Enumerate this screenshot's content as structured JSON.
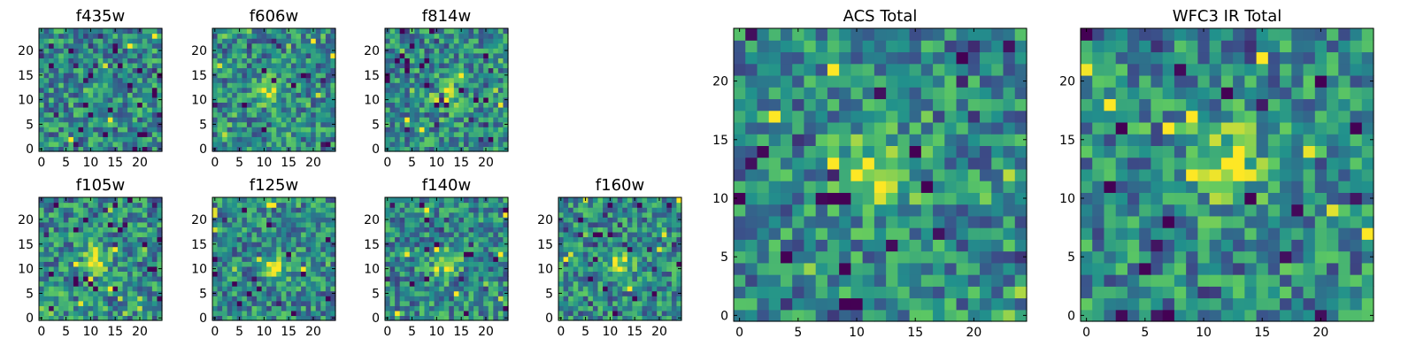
{
  "chart_data": [
    {
      "type": "heatmap",
      "title": "f435w",
      "n": 25,
      "xticks": [
        0,
        5,
        10,
        15,
        20
      ],
      "yticks": [
        0,
        5,
        10,
        15,
        20
      ],
      "xlim": [
        0,
        24
      ],
      "ylim": [
        0,
        24
      ],
      "peak": null
    },
    {
      "type": "heatmap",
      "title": "f606w",
      "n": 25,
      "xticks": [
        0,
        5,
        10,
        15,
        20
      ],
      "yticks": [
        0,
        5,
        10,
        15,
        20
      ],
      "xlim": [
        0,
        24
      ],
      "ylim": [
        0,
        24
      ],
      "peak": [
        11,
        12
      ]
    },
    {
      "type": "heatmap",
      "title": "f814w",
      "n": 25,
      "xticks": [
        0,
        5,
        10,
        15,
        20
      ],
      "yticks": [
        0,
        5,
        10,
        15,
        20
      ],
      "xlim": [
        0,
        24
      ],
      "ylim": [
        0,
        24
      ],
      "peak": [
        12,
        11
      ]
    },
    {
      "type": "heatmap",
      "title": "f105w",
      "n": 25,
      "xticks": [
        0,
        5,
        10,
        15,
        20
      ],
      "yticks": [
        0,
        5,
        10,
        15,
        20
      ],
      "xlim": [
        0,
        24
      ],
      "ylim": [
        0,
        24
      ],
      "peak": [
        11,
        12
      ]
    },
    {
      "type": "heatmap",
      "title": "f125w",
      "n": 25,
      "xticks": [
        0,
        5,
        10,
        15,
        20
      ],
      "yticks": [
        0,
        5,
        10,
        15,
        20
      ],
      "xlim": [
        0,
        24
      ],
      "ylim": [
        0,
        24
      ],
      "peak": [
        12,
        10
      ]
    },
    {
      "type": "heatmap",
      "title": "f140w",
      "n": 25,
      "xticks": [
        0,
        5,
        10,
        15,
        20
      ],
      "yticks": [
        0,
        5,
        10,
        15,
        20
      ],
      "xlim": [
        0,
        24
      ],
      "ylim": [
        0,
        24
      ],
      "peak": [
        12,
        11
      ]
    },
    {
      "type": "heatmap",
      "title": "f160w",
      "n": 25,
      "xticks": [
        0,
        5,
        10,
        15,
        20
      ],
      "yticks": [
        0,
        5,
        10,
        15,
        20
      ],
      "xlim": [
        0,
        24
      ],
      "ylim": [
        0,
        24
      ],
      "peak": [
        12,
        11
      ]
    },
    {
      "type": "heatmap",
      "title": "ACS Total",
      "n": 25,
      "xticks": [
        0,
        5,
        10,
        15,
        20
      ],
      "yticks": [
        0,
        5,
        10,
        15,
        20
      ],
      "xlim": [
        0,
        24
      ],
      "ylim": [
        0,
        24
      ],
      "peak": [
        12,
        12
      ]
    },
    {
      "type": "heatmap",
      "title": "WFC3 IR Total",
      "n": 25,
      "xticks": [
        0,
        5,
        10,
        15,
        20
      ],
      "yticks": [
        0,
        5,
        10,
        15,
        20
      ],
      "xlim": [
        0,
        24
      ],
      "ylim": [
        0,
        24
      ],
      "peak": [
        12,
        13
      ]
    }
  ],
  "colormap": [
    "#440154",
    "#3b528b",
    "#21918c",
    "#5ec962",
    "#fde725"
  ]
}
